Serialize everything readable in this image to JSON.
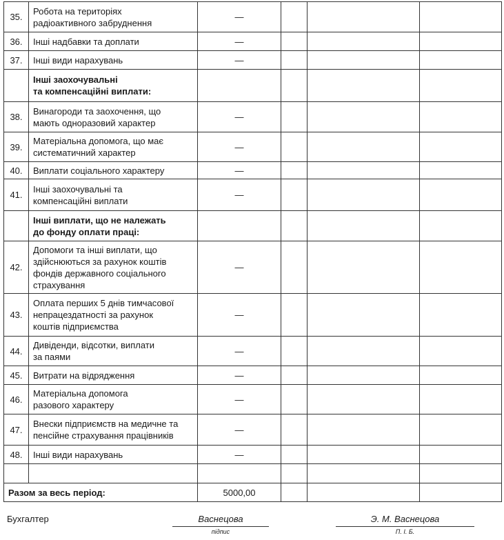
{
  "rows": [
    {
      "num": "35.",
      "label": "Робота на територіях\nрадіоактивного забруднення",
      "value": "—"
    },
    {
      "num": "36.",
      "label": "Інші надбавки та доплати",
      "value": "—"
    },
    {
      "num": "37.",
      "label": "Інші види нарахувань",
      "value": "—"
    },
    {
      "num": "",
      "label": "Інші заохочувальні\nта компенсаційні виплати:",
      "value": "",
      "header": true
    },
    {
      "num": "38.",
      "label": "Винагороди та заохочення, що\nмають одноразовий характер",
      "value": "—"
    },
    {
      "num": "39.",
      "label": "Матеріальна допомога, що має\nсистематичний характер",
      "value": "—"
    },
    {
      "num": "40.",
      "label": "Виплати соціального характеру",
      "value": "—"
    },
    {
      "num": "41.",
      "label": "Інші заохочувальні та\nкомпенсаційні виплати",
      "value": "—"
    },
    {
      "num": "",
      "label": "Інші виплати, що не належать\nдо фонду оплати праці:",
      "value": "",
      "header": true
    },
    {
      "num": "42.",
      "label": "Допомоги та інші виплати, що\nздійснюються за рахунок коштів\nфондів державного соціального\nстрахування",
      "value": "—"
    },
    {
      "num": "43.",
      "label": "Оплата перших 5 днів тимчасової\nнепрацездатності за рахунок\nкоштів підприємства",
      "value": "—"
    },
    {
      "num": "44.",
      "label": "Дивіденди, відсотки, виплати\nза паями",
      "value": "—"
    },
    {
      "num": "45.",
      "label": "Витрати на відрядження",
      "value": "—"
    },
    {
      "num": "46.",
      "label": "Матеріальна допомога\nразового характеру",
      "value": "—"
    },
    {
      "num": "47.",
      "label": "Внески підприємств на медичне та\nпенсійне страхування працівників",
      "value": "—"
    },
    {
      "num": "48.",
      "label": "Інші види нарахувань",
      "value": "—"
    },
    {
      "num": "",
      "label": "",
      "value": ""
    }
  ],
  "total": {
    "label": "Разом за весь період:",
    "value": "5000,00"
  },
  "signature": {
    "role": "Бухгалтер",
    "signature": "Васнецова",
    "signature_caption": "підпис",
    "name": "Э. М. Васнецова",
    "name_caption": "П. І. Б."
  }
}
